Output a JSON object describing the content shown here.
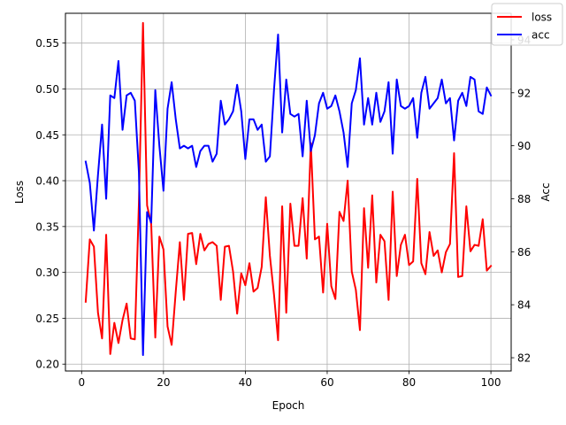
{
  "chart_data": {
    "type": "line",
    "xlabel": "Epoch",
    "ylabel_left": "Loss",
    "ylabel_right": "Acc",
    "xlim": [
      -3.95,
      104.95
    ],
    "ylim_left": [
      0.1925,
      0.5825
    ],
    "ylim_right": [
      81.5,
      95.0
    ],
    "xticks": [
      0,
      20,
      40,
      60,
      80,
      100
    ],
    "yticks_left": [
      0.2,
      0.25,
      0.3,
      0.35,
      0.4,
      0.45,
      0.5,
      0.55
    ],
    "yticks_left_labels": [
      "0.20",
      "0.25",
      "0.30",
      "0.35",
      "0.40",
      "0.45",
      "0.50",
      "0.55"
    ],
    "yticks_right": [
      82,
      84,
      86,
      88,
      90,
      92,
      94
    ],
    "grid": true,
    "legend_position": "top-right",
    "colors": {
      "loss": "#ff0000",
      "acc": "#0000ff"
    },
    "series": [
      {
        "name": "loss",
        "axis": "left",
        "x": [
          1,
          2,
          3,
          4,
          5,
          6,
          7,
          8,
          9,
          10,
          11,
          12,
          13,
          14,
          15,
          16,
          17,
          18,
          19,
          20,
          21,
          22,
          23,
          24,
          25,
          26,
          27,
          28,
          29,
          30,
          31,
          32,
          33,
          34,
          35,
          36,
          37,
          38,
          39,
          40,
          41,
          42,
          43,
          44,
          45,
          46,
          47,
          48,
          49,
          50,
          51,
          52,
          53,
          54,
          55,
          56,
          57,
          58,
          59,
          60,
          61,
          62,
          63,
          64,
          65,
          66,
          67,
          68,
          69,
          70,
          71,
          72,
          73,
          74,
          75,
          76,
          77,
          78,
          79,
          80,
          81,
          82,
          83,
          84,
          85,
          86,
          87,
          88,
          89,
          90,
          91,
          92,
          93,
          94,
          95,
          96,
          97,
          98,
          99,
          100
        ],
        "values": [
          0.268,
          0.336,
          0.328,
          0.256,
          0.228,
          0.341,
          0.211,
          0.245,
          0.223,
          0.248,
          0.266,
          0.228,
          0.227,
          0.376,
          0.572,
          0.373,
          0.353,
          0.229,
          0.339,
          0.325,
          0.241,
          0.221,
          0.279,
          0.333,
          0.27,
          0.342,
          0.343,
          0.309,
          0.342,
          0.324,
          0.331,
          0.333,
          0.329,
          0.27,
          0.328,
          0.329,
          0.301,
          0.255,
          0.299,
          0.286,
          0.31,
          0.279,
          0.283,
          0.306,
          0.382,
          0.318,
          0.276,
          0.226,
          0.372,
          0.256,
          0.375,
          0.329,
          0.329,
          0.381,
          0.315,
          0.441,
          0.336,
          0.339,
          0.278,
          0.353,
          0.285,
          0.271,
          0.366,
          0.356,
          0.4,
          0.301,
          0.281,
          0.237,
          0.37,
          0.305,
          0.384,
          0.289,
          0.341,
          0.334,
          0.27,
          0.388,
          0.296,
          0.33,
          0.341,
          0.308,
          0.312,
          0.402,
          0.31,
          0.298,
          0.344,
          0.318,
          0.324,
          0.3,
          0.322,
          0.331,
          0.43,
          0.295,
          0.296,
          0.372,
          0.323,
          0.33,
          0.329,
          0.358,
          0.302,
          0.307
        ]
      },
      {
        "name": "acc",
        "axis": "right",
        "x": [
          1,
          2,
          3,
          4,
          5,
          6,
          7,
          8,
          9,
          10,
          11,
          12,
          13,
          14,
          15,
          16,
          17,
          18,
          19,
          20,
          21,
          22,
          23,
          24,
          25,
          26,
          27,
          28,
          29,
          30,
          31,
          32,
          33,
          34,
          35,
          36,
          37,
          38,
          39,
          40,
          41,
          42,
          43,
          44,
          45,
          46,
          47,
          48,
          49,
          50,
          51,
          52,
          53,
          54,
          55,
          56,
          57,
          58,
          59,
          60,
          61,
          62,
          63,
          64,
          65,
          66,
          67,
          68,
          69,
          70,
          71,
          72,
          73,
          74,
          75,
          76,
          77,
          78,
          79,
          80,
          81,
          82,
          83,
          84,
          85,
          86,
          87,
          88,
          89,
          90,
          91,
          92,
          93,
          94,
          95,
          96,
          97,
          98,
          99,
          100
        ],
        "values": [
          89.4,
          88.6,
          86.8,
          88.9,
          90.8,
          88.0,
          91.9,
          91.8,
          93.2,
          90.6,
          91.9,
          92.0,
          91.7,
          89.0,
          82.1,
          87.5,
          87.1,
          92.1,
          90.0,
          88.3,
          91.4,
          92.4,
          91.0,
          89.9,
          90.0,
          89.9,
          90.0,
          89.2,
          89.8,
          90.0,
          90.0,
          89.4,
          89.7,
          91.7,
          90.8,
          91.0,
          91.3,
          92.3,
          91.3,
          89.5,
          91.0,
          91.0,
          90.6,
          90.8,
          89.4,
          89.6,
          92.1,
          94.2,
          90.5,
          92.5,
          91.2,
          91.1,
          91.2,
          89.6,
          91.7,
          89.8,
          90.4,
          91.6,
          92.0,
          91.4,
          91.5,
          91.9,
          91.3,
          90.5,
          89.2,
          91.6,
          92.1,
          93.3,
          90.8,
          91.8,
          90.8,
          92.0,
          90.9,
          91.3,
          92.4,
          89.7,
          92.5,
          91.5,
          91.4,
          91.5,
          91.8,
          90.3,
          92.0,
          92.6,
          91.4,
          91.6,
          91.8,
          92.5,
          91.6,
          91.8,
          90.2,
          91.7,
          92.0,
          91.5,
          92.6,
          92.5,
          91.3,
          91.2,
          92.2,
          91.9
        ]
      }
    ]
  }
}
